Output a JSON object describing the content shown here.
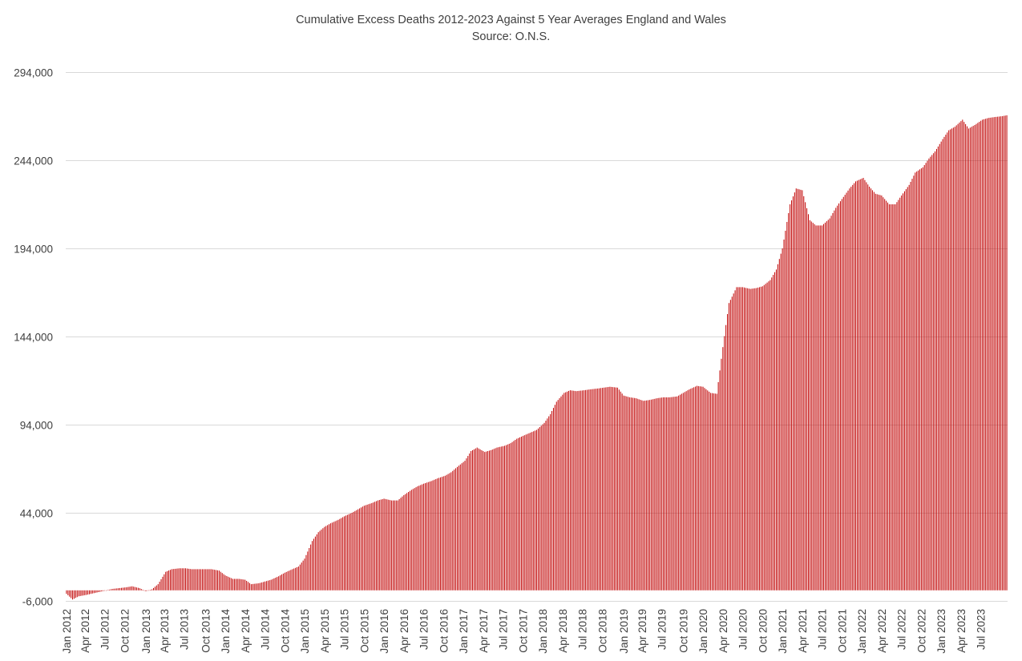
{
  "chart_data": {
    "type": "bar",
    "title": "Cumulative Excess Deaths 2012-2023 Against 5 Year Averages England and Wales",
    "subtitle": "Source: O.N.S.",
    "xlabel": "",
    "ylabel": "",
    "ylim": [
      -6000,
      294000
    ],
    "yticks": [
      -6000,
      44000,
      94000,
      144000,
      194000,
      244000,
      294000
    ],
    "ytick_labels": [
      "-6,000",
      "44,000",
      "94,000",
      "144,000",
      "194,000",
      "244,000",
      "294,000"
    ],
    "xtick_labels": [
      "Jan 2012",
      "Apr 2012",
      "Jul 2012",
      "Oct 2012",
      "Jan 2013",
      "Apr 2013",
      "Jul 2013",
      "Oct 2013",
      "Jan 2014",
      "Apr 2014",
      "Jul 2014",
      "Oct 2014",
      "Jan 2015",
      "Apr 2015",
      "Jul 2015",
      "Oct 2015",
      "Jan 2016",
      "Apr 2016",
      "Jul 2016",
      "Oct 2016",
      "Jan 2017",
      "Apr 2017",
      "Jul 2017",
      "Oct 2017",
      "Jan 2018",
      "Apr 2018",
      "Jul 2018",
      "Oct 2018",
      "Jan 2019",
      "Apr 2019",
      "Jul 2019",
      "Oct 2019",
      "Jan 2020",
      "Apr 2020",
      "Jul 2020",
      "Oct 2020",
      "Jan 2021",
      "Apr 2021",
      "Jul 2021",
      "Oct 2021",
      "Jan 2022",
      "Apr 2022",
      "Jul 2022",
      "Oct 2022",
      "Jan 2023",
      "Apr 2023",
      "Jul 2023"
    ],
    "grid": true,
    "bar_color": "#C00000",
    "series": [
      {
        "frequency": "weekly",
        "start": "2012-01-06",
        "end": "2023-10-27",
        "anchors": [
          [
            "2012-01-06",
            -2000
          ],
          [
            "2012-02-03",
            -5200
          ],
          [
            "2012-03-02",
            -3400
          ],
          [
            "2012-04-06",
            -2600
          ],
          [
            "2012-05-04",
            -1800
          ],
          [
            "2012-06-01",
            -1000
          ],
          [
            "2012-07-06",
            0
          ],
          [
            "2012-08-03",
            800
          ],
          [
            "2012-09-07",
            1300
          ],
          [
            "2012-10-05",
            1700
          ],
          [
            "2012-11-02",
            2300
          ],
          [
            "2012-12-07",
            1200
          ],
          [
            "2013-01-04",
            -500
          ],
          [
            "2013-02-01",
            600
          ],
          [
            "2013-03-01",
            3500
          ],
          [
            "2013-04-05",
            10500
          ],
          [
            "2013-05-03",
            12000
          ],
          [
            "2013-06-07",
            12500
          ],
          [
            "2013-07-05",
            12500
          ],
          [
            "2013-08-02",
            12000
          ],
          [
            "2013-09-06",
            12000
          ],
          [
            "2013-10-04",
            12000
          ],
          [
            "2013-11-01",
            12000
          ],
          [
            "2013-12-06",
            11200
          ],
          [
            "2014-01-03",
            8500
          ],
          [
            "2014-02-07",
            6500
          ],
          [
            "2014-03-07",
            6500
          ],
          [
            "2014-04-04",
            6000
          ],
          [
            "2014-05-02",
            3500
          ],
          [
            "2014-06-06",
            4000
          ],
          [
            "2014-07-04",
            5000
          ],
          [
            "2014-08-01",
            6000
          ],
          [
            "2014-09-05",
            8000
          ],
          [
            "2014-10-03",
            10000
          ],
          [
            "2014-11-07",
            12000
          ],
          [
            "2014-12-05",
            13500
          ],
          [
            "2015-01-02",
            18000
          ],
          [
            "2015-02-06",
            28000
          ],
          [
            "2015-03-06",
            33000
          ],
          [
            "2015-04-03",
            36000
          ],
          [
            "2015-05-01",
            38000
          ],
          [
            "2015-06-05",
            40000
          ],
          [
            "2015-07-03",
            42000
          ],
          [
            "2015-08-07",
            44000
          ],
          [
            "2015-09-04",
            46000
          ],
          [
            "2015-10-02",
            48000
          ],
          [
            "2015-11-06",
            49500
          ],
          [
            "2015-12-04",
            51000
          ],
          [
            "2016-01-01",
            52000
          ],
          [
            "2016-02-05",
            51000
          ],
          [
            "2016-03-04",
            51000
          ],
          [
            "2016-04-01",
            54000
          ],
          [
            "2016-05-06",
            57000
          ],
          [
            "2016-06-03",
            59000
          ],
          [
            "2016-07-01",
            60500
          ],
          [
            "2016-08-05",
            62000
          ],
          [
            "2016-09-02",
            63500
          ],
          [
            "2016-10-07",
            65000
          ],
          [
            "2016-11-04",
            67000
          ],
          [
            "2016-12-02",
            70000
          ],
          [
            "2017-01-06",
            73500
          ],
          [
            "2017-02-03",
            79000
          ],
          [
            "2017-03-03",
            81000
          ],
          [
            "2017-04-07",
            78500
          ],
          [
            "2017-05-05",
            79500
          ],
          [
            "2017-06-02",
            81000
          ],
          [
            "2017-07-07",
            82000
          ],
          [
            "2017-08-04",
            83500
          ],
          [
            "2017-09-01",
            86000
          ],
          [
            "2017-10-06",
            88000
          ],
          [
            "2017-11-03",
            89500
          ],
          [
            "2017-12-01",
            91000
          ],
          [
            "2018-01-05",
            95000
          ],
          [
            "2018-02-02",
            100000
          ],
          [
            "2018-03-02",
            107000
          ],
          [
            "2018-04-06",
            112000
          ],
          [
            "2018-05-04",
            113500
          ],
          [
            "2018-06-01",
            113000
          ],
          [
            "2018-07-06",
            113500
          ],
          [
            "2018-08-03",
            114000
          ],
          [
            "2018-09-07",
            114500
          ],
          [
            "2018-10-05",
            115000
          ],
          [
            "2018-11-02",
            115500
          ],
          [
            "2018-12-07",
            115000
          ],
          [
            "2019-01-04",
            110500
          ],
          [
            "2019-02-01",
            109500
          ],
          [
            "2019-03-01",
            109000
          ],
          [
            "2019-04-05",
            107500
          ],
          [
            "2019-05-03",
            108000
          ],
          [
            "2019-06-07",
            109000
          ],
          [
            "2019-07-05",
            109500
          ],
          [
            "2019-08-02",
            109500
          ],
          [
            "2019-09-06",
            110000
          ],
          [
            "2019-10-04",
            112000
          ],
          [
            "2019-11-01",
            114000
          ],
          [
            "2019-12-06",
            116000
          ],
          [
            "2020-01-03",
            115500
          ],
          [
            "2020-02-07",
            112000
          ],
          [
            "2020-03-06",
            111500
          ],
          [
            "2020-04-03",
            138000
          ],
          [
            "2020-05-01",
            163000
          ],
          [
            "2020-06-05",
            172000
          ],
          [
            "2020-07-03",
            172000
          ],
          [
            "2020-08-07",
            171000
          ],
          [
            "2020-09-04",
            171500
          ],
          [
            "2020-10-02",
            172500
          ],
          [
            "2020-11-06",
            176000
          ],
          [
            "2020-12-04",
            182000
          ],
          [
            "2021-01-01",
            194000
          ],
          [
            "2021-02-05",
            219000
          ],
          [
            "2021-03-05",
            228000
          ],
          [
            "2021-04-02",
            227000
          ],
          [
            "2021-05-07",
            210000
          ],
          [
            "2021-06-04",
            207000
          ],
          [
            "2021-07-02",
            207000
          ],
          [
            "2021-08-06",
            211000
          ],
          [
            "2021-09-03",
            217000
          ],
          [
            "2021-10-01",
            222000
          ],
          [
            "2021-11-05",
            228000
          ],
          [
            "2021-12-03",
            232000
          ],
          [
            "2022-01-07",
            234000
          ],
          [
            "2022-02-04",
            229000
          ],
          [
            "2022-03-04",
            225000
          ],
          [
            "2022-04-01",
            224000
          ],
          [
            "2022-05-06",
            219000
          ],
          [
            "2022-06-03",
            219000
          ],
          [
            "2022-07-01",
            224000
          ],
          [
            "2022-08-05",
            230000
          ],
          [
            "2022-09-02",
            237000
          ],
          [
            "2022-10-07",
            240000
          ],
          [
            "2022-11-04",
            245000
          ],
          [
            "2022-12-02",
            249000
          ],
          [
            "2023-01-06",
            256000
          ],
          [
            "2023-02-03",
            261000
          ],
          [
            "2023-03-03",
            263000
          ],
          [
            "2023-04-07",
            267000
          ],
          [
            "2023-05-05",
            262000
          ],
          [
            "2023-06-02",
            264000
          ],
          [
            "2023-07-07",
            267000
          ],
          [
            "2023-08-04",
            268000
          ],
          [
            "2023-09-01",
            268500
          ],
          [
            "2023-10-06",
            269000
          ],
          [
            "2023-10-27",
            269500
          ]
        ]
      }
    ]
  }
}
